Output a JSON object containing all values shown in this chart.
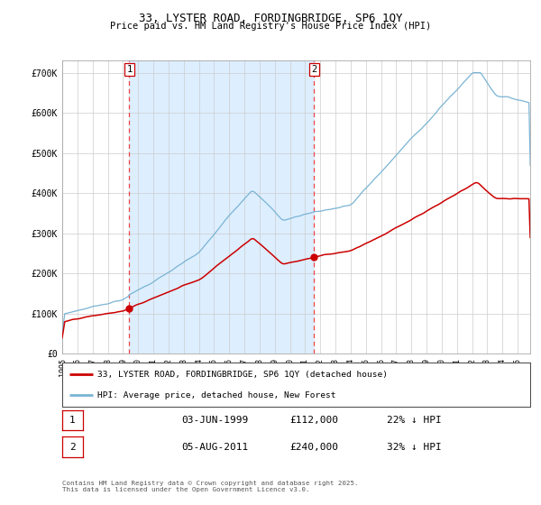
{
  "title1": "33, LYSTER ROAD, FORDINGBRIDGE, SP6 1QY",
  "title2": "Price paid vs. HM Land Registry's House Price Index (HPI)",
  "ylim": [
    0,
    730000
  ],
  "xlim_start": 1995.0,
  "xlim_end": 2025.83,
  "hpi_color": "#7ab4d4",
  "price_color": "#cc0000",
  "vline_color": "#ee4444",
  "shade_color": "#ddeeff",
  "grid_color": "#cccccc",
  "marker1_date": 1999.42,
  "marker2_date": 2011.58,
  "legend_label1": "33, LYSTER ROAD, FORDINGBRIDGE, SP6 1QY (detached house)",
  "legend_label2": "HPI: Average price, detached house, New Forest",
  "table_row1": [
    "1",
    "03-JUN-1999",
    "£112,000",
    "22% ↓ HPI"
  ],
  "table_row2": [
    "2",
    "05-AUG-2011",
    "£240,000",
    "32% ↓ HPI"
  ],
  "footer": "Contains HM Land Registry data © Crown copyright and database right 2025.\nThis data is licensed under the Open Government Licence v3.0.",
  "yticks": [
    0,
    100000,
    200000,
    300000,
    400000,
    500000,
    600000,
    700000
  ],
  "ytick_labels": [
    "£0",
    "£100K",
    "£200K",
    "£300K",
    "£400K",
    "£500K",
    "£600K",
    "£700K"
  ]
}
